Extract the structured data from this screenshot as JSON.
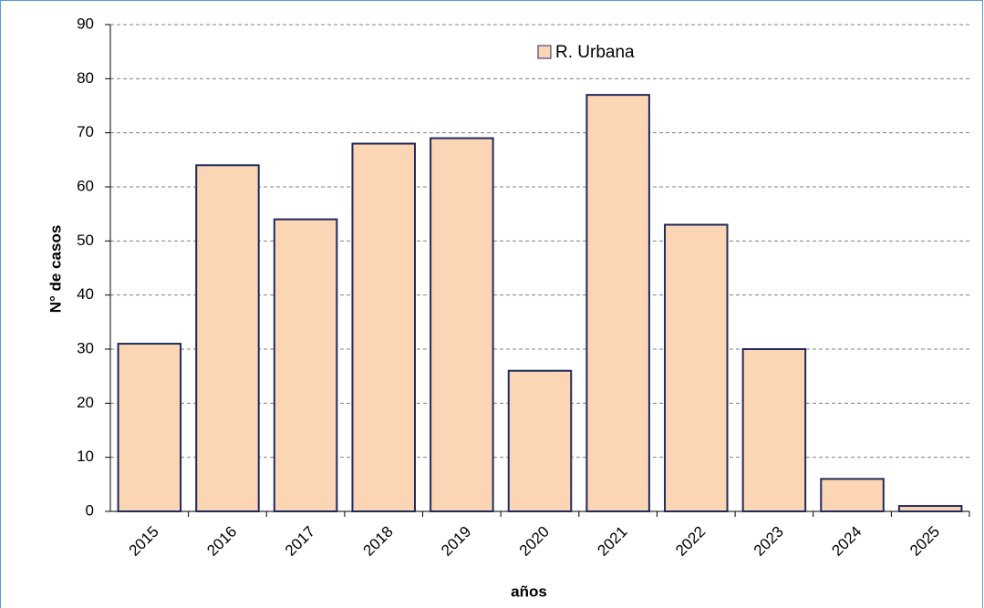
{
  "chart_data": {
    "type": "bar",
    "categories": [
      "2015",
      "2016",
      "2017",
      "2018",
      "2019",
      "2020",
      "2021",
      "2022",
      "2023",
      "2024",
      "2025"
    ],
    "series": [
      {
        "name": "R. Urbana",
        "color": "#fcd5b4",
        "values": [
          31,
          64,
          54,
          68,
          69,
          26,
          77,
          53,
          30,
          6,
          1
        ]
      }
    ],
    "edgecolor": "#1f2a5c",
    "xlabel": "años",
    "ylabel": "N° de casos",
    "ylim": [
      0,
      90
    ],
    "yticks": [
      0,
      10,
      20,
      30,
      40,
      50,
      60,
      70,
      80,
      90
    ],
    "grid": true
  }
}
